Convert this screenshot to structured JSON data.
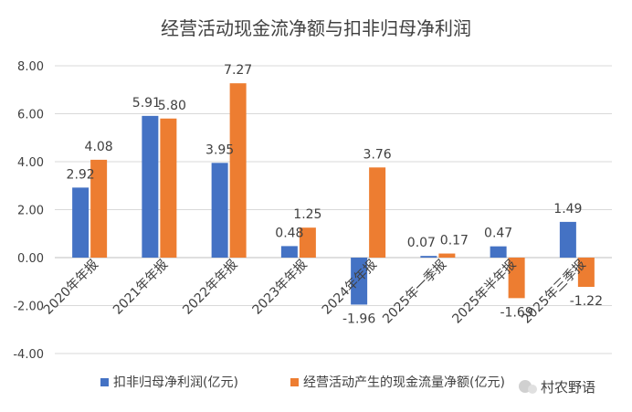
{
  "chart_data": {
    "type": "bar",
    "title": "经营活动现金流净额与扣非归母净利润",
    "categories": [
      "2020年年报",
      "2021年年报",
      "2022年年报",
      "2023年年报",
      "2024年年报",
      "2025年一季报",
      "2025年半年报",
      "2025年三季报"
    ],
    "series": [
      {
        "name": "扣非归母净利润(亿元)",
        "color": "#4472C4",
        "values": [
          2.92,
          5.91,
          3.95,
          0.48,
          -1.96,
          0.07,
          0.47,
          1.49
        ],
        "labels": [
          "2.92",
          "5.91",
          "3.95",
          "0.48",
          "-1.96",
          "0.07",
          "0.47",
          "1.49"
        ]
      },
      {
        "name": "经营活动产生的现金流量净额(亿元)",
        "color": "#ED7D31",
        "values": [
          4.08,
          5.8,
          7.27,
          1.25,
          3.76,
          0.17,
          -1.69,
          -1.22
        ],
        "labels": [
          "4.08",
          "5.80",
          "7.27",
          "1.25",
          "3.76",
          "0.17",
          "-1.69",
          "-1.22"
        ]
      }
    ],
    "ylim": [
      -4,
      8
    ],
    "yticks": [
      -4,
      -2,
      0,
      2,
      4,
      6,
      8
    ],
    "ytick_labels": [
      "-4.00",
      "-2.00",
      "0.00",
      "2.00",
      "4.00",
      "6.00",
      "8.00"
    ],
    "grid": true,
    "legend": "bottom"
  },
  "watermark": "村农野语"
}
